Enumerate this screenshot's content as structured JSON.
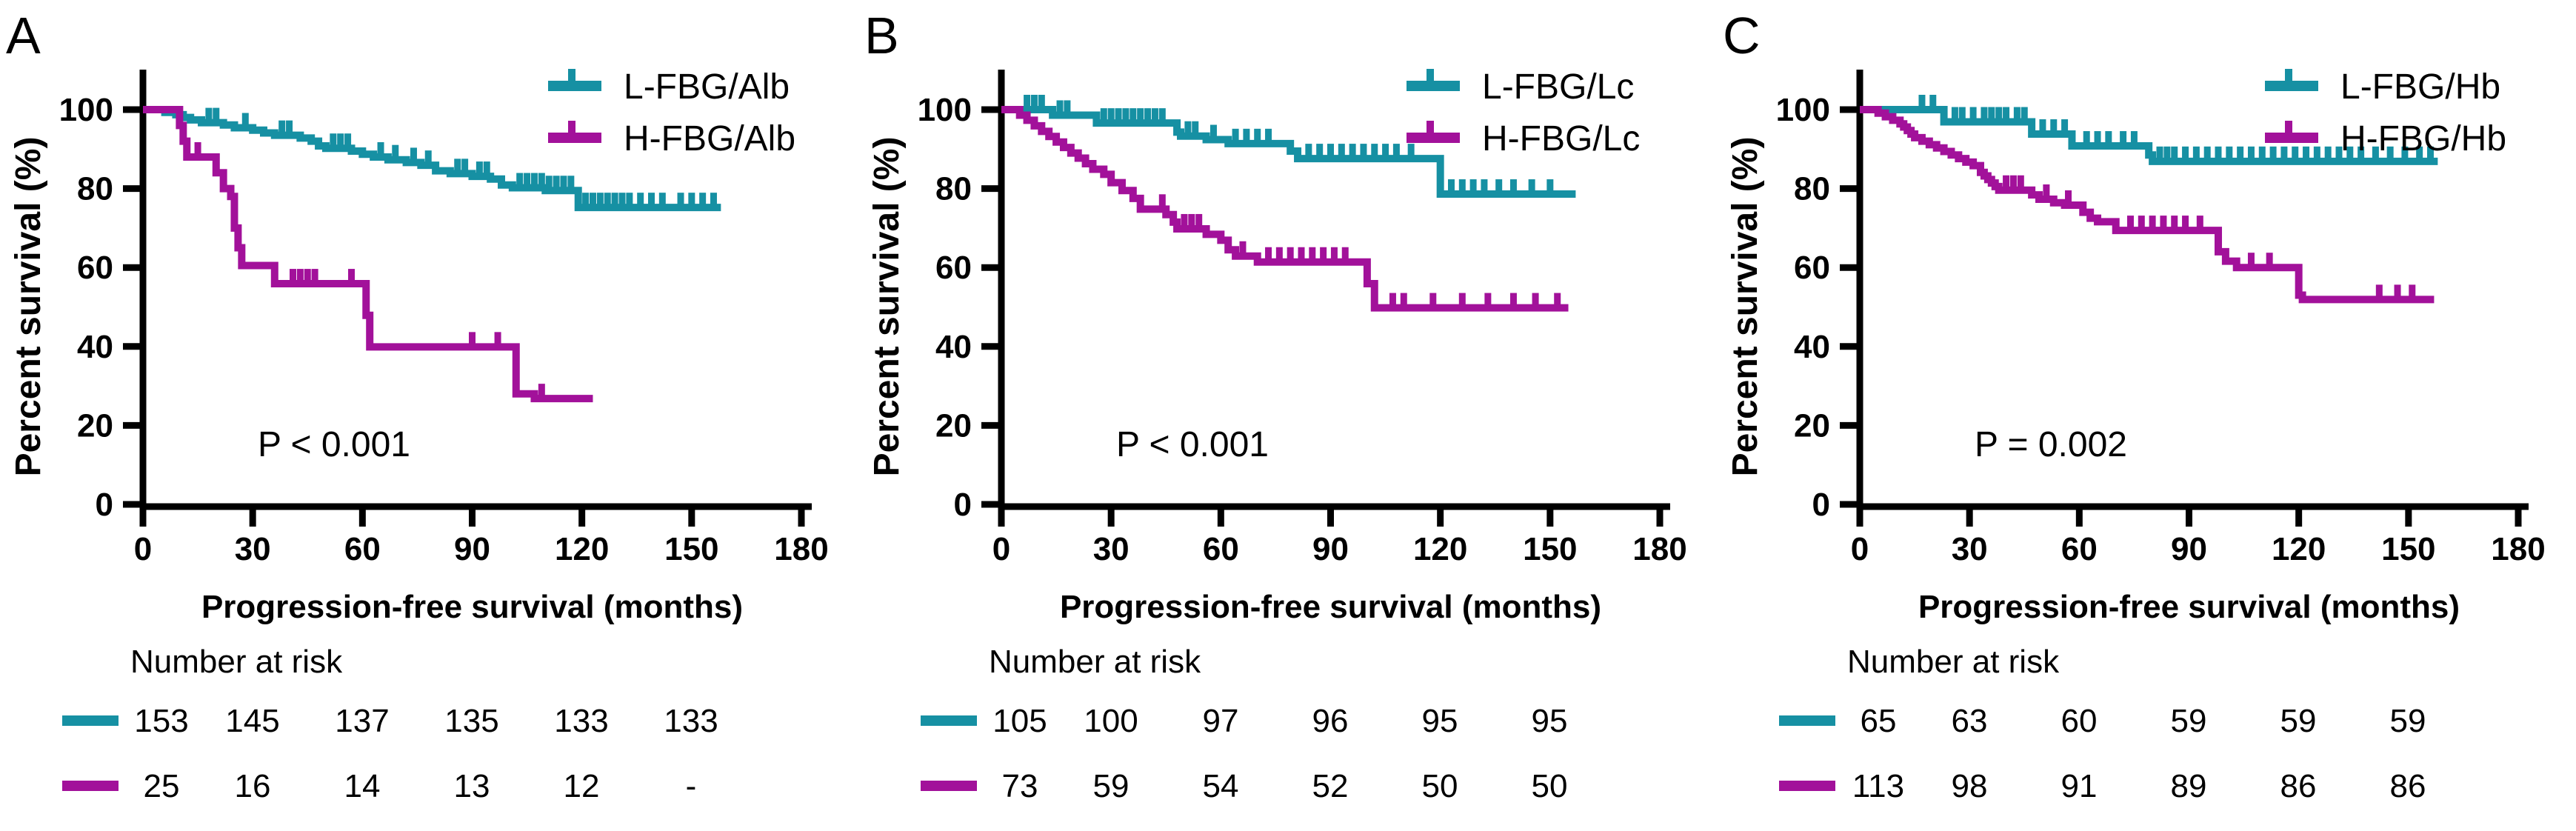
{
  "figure": {
    "background": "#ffffff",
    "axis_color": "#000000",
    "y_label": "Percent survival (%)",
    "x_label": "Progression-free survival (months)",
    "risk_header": "Number at risk",
    "series_colors": {
      "low": "#1690A3",
      "high": "#A2119A"
    }
  },
  "chart_data": [
    {
      "type": "line",
      "subtype": "kaplan-meier-step",
      "panel_label": "A",
      "xlabel": "Progression-free survival (months)",
      "ylabel": "Percent survival (%)",
      "xlim": [
        0,
        180
      ],
      "ylim": [
        0,
        100
      ],
      "x_ticks": [
        0,
        30,
        60,
        90,
        120,
        150,
        180
      ],
      "y_ticks": [
        0,
        20,
        40,
        60,
        80,
        100
      ],
      "grid": false,
      "legend_position": "top-right",
      "p_value": "P < 0.001",
      "series": [
        {
          "name": "L-FBG/Alb",
          "color": "#1690A3",
          "steps": [
            [
              0,
              100
            ],
            [
              6,
              99.3
            ],
            [
              9,
              98.7
            ],
            [
              11,
              98
            ],
            [
              13,
              97.4
            ],
            [
              16,
              96.7
            ],
            [
              22,
              96.1
            ],
            [
              25,
              95.4
            ],
            [
              30,
              94.8
            ],
            [
              33,
              94.1
            ],
            [
              36,
              93.5
            ],
            [
              43,
              92.8
            ],
            [
              46,
              92
            ],
            [
              48,
              90.8
            ],
            [
              50,
              90.2
            ],
            [
              57,
              89.5
            ],
            [
              60,
              88.7
            ],
            [
              63,
              88
            ],
            [
              67,
              87.3
            ],
            [
              72,
              86.6
            ],
            [
              76,
              85.9
            ],
            [
              80,
              84.5
            ],
            [
              84,
              83.8
            ],
            [
              90,
              83.1
            ],
            [
              95,
              82.4
            ],
            [
              98,
              80.9
            ],
            [
              101,
              80.2
            ],
            [
              110,
              79.5
            ],
            [
              119,
              75.2
            ],
            [
              158,
              75.2
            ]
          ],
          "censor_times": [
            18,
            20,
            28,
            38,
            40,
            52,
            54,
            56,
            65,
            69,
            74,
            78,
            86,
            88,
            92,
            94,
            103,
            105,
            107,
            109,
            111,
            113,
            115,
            117,
            121,
            123,
            125,
            127,
            129,
            131,
            133,
            136,
            139,
            142,
            147,
            150,
            153,
            156
          ]
        },
        {
          "name": "H-FBG/Alb",
          "color": "#A2119A",
          "steps": [
            [
              0,
              100
            ],
            [
              10,
              96
            ],
            [
              11,
              92
            ],
            [
              12,
              88
            ],
            [
              20,
              84
            ],
            [
              22,
              80
            ],
            [
              24,
              78
            ],
            [
              25,
              70
            ],
            [
              26,
              65
            ],
            [
              27,
              60.5
            ],
            [
              36,
              55.9
            ],
            [
              61,
              47.9
            ],
            [
              62,
              39.9
            ],
            [
              102,
              28
            ],
            [
              107,
              26.8
            ],
            [
              123,
              26.8
            ]
          ],
          "censor_times": [
            15,
            41,
            43,
            45,
            47,
            57,
            90,
            97,
            109
          ]
        }
      ],
      "number_at_risk": {
        "times": [
          0,
          30,
          60,
          90,
          120,
          150
        ],
        "rows": [
          {
            "name": "L-FBG/Alb",
            "values": [
              "153",
              "145",
              "137",
              "135",
              "133",
              "133"
            ]
          },
          {
            "name": "H-FBG/Alb",
            "values": [
              "25",
              "16",
              "14",
              "13",
              "12",
              "-"
            ]
          }
        ]
      }
    },
    {
      "type": "line",
      "subtype": "kaplan-meier-step",
      "panel_label": "B",
      "xlabel": "Progression-free survival (months)",
      "ylabel": "Percent survival (%)",
      "xlim": [
        0,
        180
      ],
      "ylim": [
        0,
        100
      ],
      "x_ticks": [
        0,
        30,
        60,
        90,
        120,
        150,
        180
      ],
      "y_ticks": [
        0,
        20,
        40,
        60,
        80,
        100
      ],
      "grid": false,
      "legend_position": "top-right",
      "p_value": "P < 0.001",
      "series": [
        {
          "name": "L-FBG/Lc",
          "color": "#1690A3",
          "steps": [
            [
              0,
              100
            ],
            [
              14,
              98.6
            ],
            [
              26,
              96.6
            ],
            [
              48,
              94.3
            ],
            [
              49,
              93.3
            ],
            [
              56,
              92.4
            ],
            [
              62,
              91.4
            ],
            [
              79,
              89.5
            ],
            [
              81,
              87.6
            ],
            [
              120,
              78.6
            ],
            [
              157,
              78.6
            ]
          ],
          "censor_times": [
            7,
            9,
            11,
            16,
            18,
            28,
            30,
            32,
            34,
            36,
            38,
            40,
            42,
            44,
            51,
            53,
            58,
            64,
            67,
            70,
            73,
            84,
            87,
            90,
            93,
            96,
            99,
            102,
            105,
            108,
            112,
            123,
            126,
            129,
            132,
            136,
            140,
            145,
            150
          ]
        },
        {
          "name": "H-FBG/Lc",
          "color": "#A2119A",
          "steps": [
            [
              0,
              100
            ],
            [
              5,
              98.6
            ],
            [
              7,
              97.3
            ],
            [
              9,
              95.9
            ],
            [
              11,
              94.5
            ],
            [
              13,
              93.2
            ],
            [
              15,
              91.8
            ],
            [
              17,
              90.4
            ],
            [
              19,
              89
            ],
            [
              21,
              87.7
            ],
            [
              23,
              86.3
            ],
            [
              25,
              84.9
            ],
            [
              28,
              83.6
            ],
            [
              30,
              81.5
            ],
            [
              33,
              79.5
            ],
            [
              36,
              77.5
            ],
            [
              38,
              74.8
            ],
            [
              45,
              73.4
            ],
            [
              47,
              71.5
            ],
            [
              48,
              69.8
            ],
            [
              56,
              68.4
            ],
            [
              60,
              66.9
            ],
            [
              62,
              64.5
            ],
            [
              64,
              62.9
            ],
            [
              70,
              61.4
            ],
            [
              100,
              55.9
            ],
            [
              102,
              49.8
            ],
            [
              155,
              49.8
            ]
          ],
          "censor_times": [
            44,
            50,
            52,
            54,
            66,
            73,
            76,
            79,
            82,
            85,
            88,
            91,
            94,
            107,
            110,
            118,
            126,
            133,
            140,
            146,
            152
          ]
        }
      ],
      "number_at_risk": {
        "times": [
          0,
          30,
          60,
          90,
          120,
          150
        ],
        "rows": [
          {
            "name": "L-FBG/Lc",
            "values": [
              "105",
              "100",
              "97",
              "96",
              "95",
              "95"
            ]
          },
          {
            "name": "H-FBG/Lc",
            "values": [
              "73",
              "59",
              "54",
              "52",
              "50",
              "50"
            ]
          }
        ]
      }
    },
    {
      "type": "line",
      "subtype": "kaplan-meier-step",
      "panel_label": "C",
      "xlabel": "Progression-free survival (months)",
      "ylabel": "Percent survival (%)",
      "xlim": [
        0,
        180
      ],
      "ylim": [
        0,
        100
      ],
      "x_ticks": [
        0,
        30,
        60,
        90,
        120,
        150,
        180
      ],
      "y_ticks": [
        0,
        20,
        40,
        60,
        80,
        100
      ],
      "grid": false,
      "legend_position": "top-right",
      "p_value": "P = 0.002",
      "series": [
        {
          "name": "L-FBG/Hb",
          "color": "#1690A3",
          "steps": [
            [
              0,
              100
            ],
            [
              23,
              96.9
            ],
            [
              47,
              93.8
            ],
            [
              58,
              90.8
            ],
            [
              79,
              88.5
            ],
            [
              80,
              86.9
            ],
            [
              158,
              86.9
            ]
          ],
          "censor_times": [
            17,
            20,
            26,
            28,
            31,
            34,
            36,
            38,
            40,
            43,
            45,
            50,
            53,
            56,
            62,
            65,
            68,
            72,
            75,
            82,
            84,
            86,
            89,
            92,
            95,
            98,
            101,
            104,
            107,
            110,
            113,
            116,
            119,
            122,
            125,
            128,
            131,
            134,
            137,
            141,
            145,
            149,
            153,
            156
          ]
        },
        {
          "name": "H-FBG/Hb",
          "color": "#A2119A",
          "steps": [
            [
              0,
              100
            ],
            [
              5,
              99.1
            ],
            [
              7,
              98.2
            ],
            [
              9,
              97.3
            ],
            [
              11,
              96.4
            ],
            [
              12,
              95.6
            ],
            [
              13,
              94.7
            ],
            [
              14,
              93.8
            ],
            [
              15,
              92.9
            ],
            [
              17,
              92
            ],
            [
              19,
              91.1
            ],
            [
              21,
              90.3
            ],
            [
              23,
              89.4
            ],
            [
              25,
              88.5
            ],
            [
              27,
              87.6
            ],
            [
              29,
              86.7
            ],
            [
              31,
              85.8
            ],
            [
              33,
              84.1
            ],
            [
              34,
              83.2
            ],
            [
              35,
              82.3
            ],
            [
              36,
              81.4
            ],
            [
              37,
              80.5
            ],
            [
              38,
              79.6
            ],
            [
              47,
              78.4
            ],
            [
              49,
              77.3
            ],
            [
              53,
              76.4
            ],
            [
              56,
              75.8
            ],
            [
              61,
              74
            ],
            [
              63,
              72.5
            ],
            [
              65,
              71.6
            ],
            [
              70,
              69.4
            ],
            [
              98,
              64
            ],
            [
              100,
              61.6
            ],
            [
              103,
              60
            ],
            [
              120,
              53
            ],
            [
              121,
              51.9
            ],
            [
              157,
              51.9
            ]
          ],
          "censor_times": [
            40,
            42,
            44,
            51,
            57,
            74,
            77,
            80,
            83,
            86,
            89,
            93,
            107,
            112,
            142,
            147,
            151
          ]
        }
      ],
      "number_at_risk": {
        "times": [
          0,
          30,
          60,
          90,
          120,
          150
        ],
        "rows": [
          {
            "name": "L-FBG/Hb",
            "values": [
              "65",
              "63",
              "60",
              "59",
              "59",
              "59"
            ]
          },
          {
            "name": "H-FBG/Hb",
            "values": [
              "113",
              "98",
              "91",
              "89",
              "86",
              "86"
            ]
          }
        ]
      }
    }
  ]
}
